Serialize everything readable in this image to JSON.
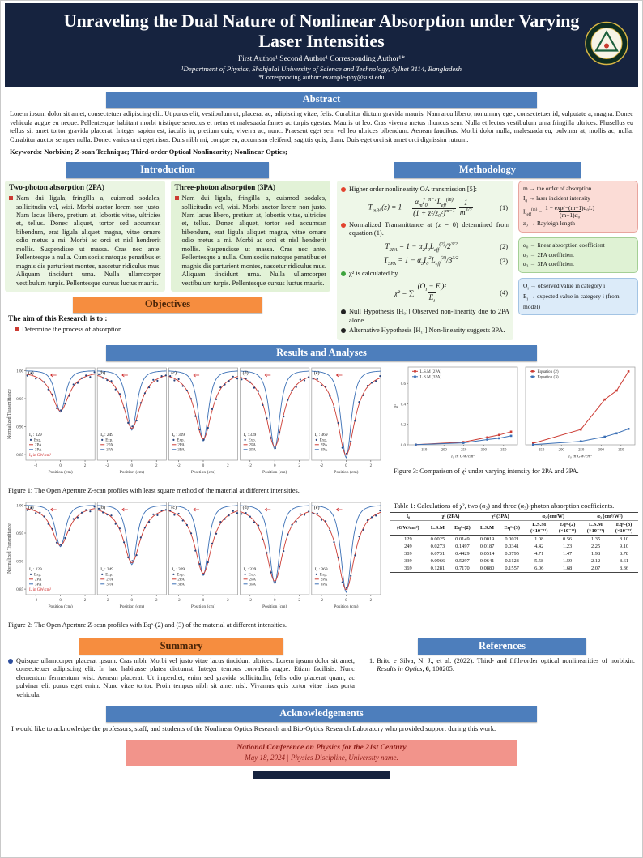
{
  "colors": {
    "masthead_navy": "#16233f",
    "section_blue": "#4d7ebc",
    "section_orange": "#f68d3f",
    "footer_salmon": "#f2948b",
    "accent_red": "#cc3b33",
    "accent_blue": "#3a6fb5"
  },
  "header": {
    "title": "Unraveling the Dual Nature of Nonlinear Absorption under Varying Laser Intensities",
    "authors": "First Author¹   Second Author¹   Corresponding Author¹*",
    "affiliation": "¹Department of Physics, Shahjalal University of Science and Technology, Sylhet 3114, Bangladesh",
    "corresponding": "*Corresponding author: example-phy@sust.edu"
  },
  "abstract": {
    "heading": "Abstract",
    "body": "Lorem ipsum dolor sit amet, consectetuer adipiscing elit. Ut purus elit, vestibulum ut, placerat ac, adipiscing vitae, felis. Curabitur dictum gravida mauris. Nam arcu libero, nonummy eget, consectetuer id, vulputate a, magna. Donec vehicula augue eu neque. Pellentesque habitant morbi tristique senectus et netus et malesuada fames ac turpis egestas. Mauris ut leo. Cras viverra metus rhoncus sem. Nulla et lectus vestibulum urna fringilla ultrices. Phasellus eu tellus sit amet tortor gravida placerat. Integer sapien est, iaculis in, pretium quis, viverra ac, nunc. Praesent eget sem vel leo ultrices bibendum. Aenean faucibus. Morbi dolor nulla, malesuada eu, pulvinar at, mollis ac, nulla. Curabitur auctor semper nulla. Donec varius orci eget risus. Duis nibh mi, congue eu, accumsan eleifend, sagittis quis, diam. Duis eget orci sit amet orci dignissim rutrum.",
    "keywords": "Keywords: Norbixin; Z-scan Technique; Third-order Optical Nonlinearity; Nonlinear Optics;"
  },
  "introduction": {
    "heading": "Introduction",
    "columns": [
      {
        "title": "Two-photon absorption (2PA)",
        "body": "Nam dui ligula, fringilla a, euismod sodales, sollicitudin vel, wisi. Morbi auctor lorem non justo. Nam lacus libero, pretium at, lobortis vitae, ultricies et, tellus. Donec aliquet, tortor sed accumsan bibendum, erat ligula aliquet magna, vitae ornare odio metus a mi. Morbi ac orci et nisl hendrerit mollis. Suspendisse ut massa. Cras nec ante. Pellentesque a nulla. Cum sociis natoque penatibus et magnis dis parturient montes, nascetur ridiculus mus. Aliquam tincidunt urna. Nulla ullamcorper vestibulum turpis. Pellentesque cursus luctus mauris."
      },
      {
        "title": "Three-photon absorption (3PA)",
        "body": "Nam dui ligula, fringilla a, euismod sodales, sollicitudin vel, wisi. Morbi auctor lorem non justo. Nam lacus libero, pretium at, lobortis vitae, ultricies et, tellus. Donec aliquet, tortor sed accumsan bibendum, erat ligula aliquet magna, vitae ornare odio metus a mi. Morbi ac orci et nisl hendrerit mollis. Suspendisse ut massa. Cras nec ante. Pellentesque a nulla. Cum sociis natoque penatibus et magnis dis parturient montes, nascetur ridiculus mus. Aliquam tincidunt urna. Nulla ullamcorper vestibulum turpis. Pellentesque cursus luctus mauris."
      }
    ]
  },
  "objectives": {
    "heading": "Objectives",
    "lead": "The aim of this Research is to :",
    "item": "Determine the process of absorption."
  },
  "methodology": {
    "heading": "Methodology",
    "bullets": [
      "Higher order nonlinearity OA transmission [5]:",
      "Normalized Transmittance at (z = 0) determined from equation (1).",
      "χ² is calculated by",
      "Null Hypothesis [H₀:] Observed non-linearity due to 2PA alone.",
      "Alternative Hypothesis [H₁:] Non-linearity suggests 3PA."
    ],
    "equations": [
      {
        "body": "T<sub>mPA</sub>(z) = 1 − <span class='frac'><span class='num'>α<sub>m</sub>I<sub>0</sub><sup>m−1</sup>L<sub>eff</sub><sup>(m)</sup></span><span class='den'>(1 + z²/z₀²)<sup>m−1</sup></span></span><span class='frac'><span class='num'>1</span><span class='den'>m<sup>3/2</sup></span></span>",
        "number": "(1)"
      },
      {
        "body": "T<sub>2PA</sub> = 1 − α<sub>2</sub>I<sub>0</sub>L<sub>eff</sub><sup>(2)</sup>/2<sup>3/2</sup>",
        "number": "(2)"
      },
      {
        "body": "T<sub>3PA</sub> = 1 − α<sub>3</sub>I<sub>0</sub><sup>2</sup>L<sub>eff</sub><sup>(3)</sup>/3<sup>3/2</sup>",
        "number": "(3)"
      },
      {
        "body": "χ² = ∑ <span class='frac'><span class='num'>(O<sub>i</sub> − E<sub>i</sub>)²</span><span class='den'>E<sub>i</sub></span></span>",
        "number": "(4)"
      }
    ],
    "boxes": {
      "definitions": {
        "lines": [
          "m → the order of absorption",
          "I<sub>0</sub> → laser incident intensity",
          "L<sub>eff</sub><sup>(m)</sup> = <span class='frac'><span class='num'>1 − exp(−(m−1)α₀L)</span><span class='den'>(m−1)α₀</span></span>",
          "z₀ → Rayleigh length"
        ]
      },
      "coefficients": {
        "lines": [
          "α₀ → linear absorption coefficient",
          "α₂ → 2PA coefficient",
          "α₃ → 3PA coefficient"
        ]
      },
      "chi_terms": {
        "lines": [
          "O<sub>i</sub> → observed value in category i",
          "E<sub>i</sub> → expected value in category i (from model)"
        ]
      }
    }
  },
  "results": {
    "heading": "Results and Analyses",
    "fig1_caption": "Figure 1: The Open Aperture Z-scan profiles with least square method of the material at different intensities.",
    "fig2_caption": "Figure 2: The Open Aperture Z-scan profiles with Eqⁿ-(2) and (3) of the material at different intensities.",
    "fig3_caption": "Figure 3: Comparison of χ² under varying intensity for 2PA and 3PA.",
    "table": {
      "caption": "Table 1: Calculations of χ², two (α₂) and three (α₃)-photon absorption coefficients.",
      "groups": [
        {
          "label": "I₀",
          "span": 1
        },
        {
          "label": "χ² (2PA)",
          "span": 2
        },
        {
          "label": "χ² (3PA)",
          "span": 2
        },
        {
          "label": "α₂ (cm/W)",
          "span": 2
        },
        {
          "label": "α₃ (cm³/W²)",
          "span": 2
        }
      ],
      "subs": [
        "(GW/cm²)",
        "L.S.M",
        "Eqⁿ-(2)",
        "L.S.M",
        "Eqⁿ-(3)",
        "L.S.M\n(×10⁻¹¹)",
        "Eqⁿ-(2)\n(×10⁻¹³)",
        "L.S.M\n(×10⁻²³)",
        "Eqⁿ-(3)\n(×10⁻²³)"
      ],
      "rows": [
        [
          "129",
          "0.0025",
          "0.0149",
          "0.0019",
          "0.0021",
          "1.08",
          "0.56",
          "1.35",
          "8.10"
        ],
        [
          "249",
          "0.0273",
          "0.1497",
          "0.0187",
          "0.0341",
          "4.42",
          "1.23",
          "2.25",
          "9.10"
        ],
        [
          "309",
          "0.0731",
          "0.4429",
          "0.0514",
          "0.0795",
          "4.71",
          "1.47",
          "1.98",
          "8.78"
        ],
        [
          "339",
          "0.0966",
          "0.5297",
          "0.0641",
          "0.1128",
          "5.58",
          "1.59",
          "2.12",
          "8.61"
        ],
        [
          "369",
          "0.1281",
          "0.7170",
          "0.0880",
          "0.1557",
          "6.06",
          "1.68",
          "2.07",
          "8.36"
        ]
      ]
    }
  },
  "summary": {
    "heading": "Summary",
    "body": "Quisque ullamcorper placerat ipsum. Cras nibh. Morbi vel justo vitae lacus tincidunt ultrices. Lorem ipsum dolor sit amet, consectetuer adipiscing elit. In hac habitasse platea dictumst. Integer tempus convallis augue. Etiam facilisis. Nunc elementum fermentum wisi. Aenean placerat. Ut imperdiet, enim sed gravida sollicitudin, felis odio placerat quam, ac pulvinar elit purus eget enim. Nunc vitae tortor. Proin tempus nibh sit amet nisl. Vivamus quis tortor vitae risus porta vehicula."
  },
  "references": {
    "heading": "References",
    "items": [
      {
        "marker": "1.",
        "html": "Brito e Silva, N. J., et al. (2022). Third- and fifth-order optical nonlinearities of norbixin. <i>Results in Optics</i>, <b>6</b>, 100205."
      }
    ]
  },
  "acknowledgements": {
    "heading": "Acknowledgements",
    "body": "I would like to acknowledge the professors, staff, and students of the Nonlinear Optics Research and Bio-Optics Research Laboratory who provided support during this work."
  },
  "footer": {
    "line1": "National Conference on Physics for the 21st Century",
    "line2": "May 18, 2024  |  Physics Discipline, University name."
  },
  "chart_data": [
    {
      "id": "fig1",
      "type": "line",
      "description": "Open Aperture Z-scan profiles fitted with the least square method",
      "xlabel": "Position (cm)",
      "ylabel": "Normalized Transmittance",
      "xlim": [
        -2.8,
        2.8
      ],
      "ylim": [
        0.84,
        1.005
      ],
      "xticks": [
        -2,
        0,
        2
      ],
      "yticks": [
        1.0,
        0.95,
        0.9,
        0.85
      ],
      "legend": [
        "Exp.",
        "2PA",
        "3PA"
      ],
      "intensity_prefix": "I₀ :",
      "intensity_note": "I₀ in GW/cm²",
      "subplots": [
        {
          "label": "(a)",
          "intensity": 129,
          "dip": 0.072
        },
        {
          "label": "(b)",
          "intensity": 249,
          "dip": 0.103
        },
        {
          "label": "(c)",
          "intensity": 309,
          "dip": 0.122
        },
        {
          "label": "(d)",
          "intensity": 339,
          "dip": 0.136
        },
        {
          "label": "(e)",
          "intensity": 369,
          "dip": 0.151
        }
      ]
    },
    {
      "id": "fig2",
      "type": "line",
      "description": "Open Aperture Z-scan profiles fitted with Eqⁿ-(2) and (3)",
      "xlabel": "Position (cm)",
      "ylabel": "Normalized Transmittance",
      "xlim": [
        -2.8,
        2.8
      ],
      "ylim": [
        0.84,
        1.005
      ],
      "xticks": [
        -2,
        0,
        2
      ],
      "yticks": [
        1.0,
        0.95,
        0.9,
        0.85
      ],
      "legend": [
        "Exp.",
        "2PA",
        "3PA"
      ],
      "intensity_prefix": "I₀ :",
      "intensity_note": "I₀ in GW/cm²",
      "subplots": [
        {
          "label": "(a)",
          "intensity": 129,
          "dip": 0.072
        },
        {
          "label": "(b)",
          "intensity": 249,
          "dip": 0.103
        },
        {
          "label": "(c)",
          "intensity": 309,
          "dip": 0.122
        },
        {
          "label": "(d)",
          "intensity": 339,
          "dip": 0.136
        },
        {
          "label": "(e)",
          "intensity": 369,
          "dip": 0.151
        }
      ]
    },
    {
      "id": "fig3",
      "type": "line",
      "xlabel": "I₀ in GW/cm²",
      "ylabel": "χ²",
      "x": [
        129,
        249,
        309,
        339,
        369
      ],
      "xticks": [
        150,
        200,
        250,
        300,
        350
      ],
      "yticks": [
        0,
        0.2,
        0.4,
        0.6
      ],
      "ylim": [
        0,
        0.76
      ],
      "panels": [
        {
          "series": [
            {
              "name": "L.S.M (2PA)",
              "color": "#cc3b33",
              "values": [
                0.0025,
                0.0273,
                0.0731,
                0.0966,
                0.1281
              ]
            },
            {
              "name": "L.S.M (3PA)",
              "color": "#3a6fb5",
              "values": [
                0.0019,
                0.0187,
                0.0514,
                0.0641,
                0.088
              ]
            }
          ]
        },
        {
          "series": [
            {
              "name": "Equation (2)",
              "color": "#cc3b33",
              "values": [
                0.0149,
                0.1497,
                0.4429,
                0.5297,
                0.717
              ]
            },
            {
              "name": "Equation (3)",
              "color": "#3a6fb5",
              "values": [
                0.0021,
                0.0341,
                0.0795,
                0.1128,
                0.1557
              ]
            }
          ]
        }
      ]
    }
  ]
}
